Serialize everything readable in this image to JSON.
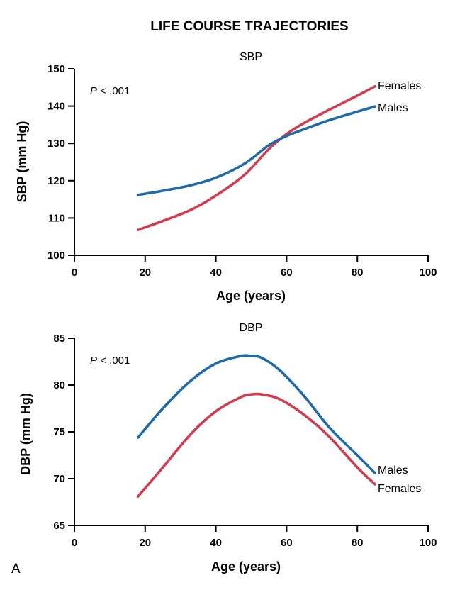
{
  "figure": {
    "title": "LIFE COURSE TRAJECTORIES",
    "panel_label": "A"
  },
  "chart_data": [
    {
      "type": "line",
      "title": "SBP",
      "xlabel": "Age (years)",
      "ylabel": "SBP (mm Hg)",
      "annotation_prefix": "P",
      "annotation_value": " < .001",
      "xlim": [
        0,
        100
      ],
      "ylim": [
        100,
        150
      ],
      "xticks": [
        0,
        20,
        40,
        60,
        80,
        100
      ],
      "yticks": [
        100,
        110,
        120,
        130,
        140,
        150
      ],
      "series": [
        {
          "name": "Females",
          "color": "#d23c4f",
          "x": [
            18,
            25,
            33,
            40,
            48,
            55,
            60,
            65,
            72,
            80,
            85
          ],
          "y": [
            106.8,
            109.2,
            112.2,
            116,
            121.5,
            128.5,
            132.5,
            135.5,
            139,
            142.8,
            145.3
          ]
        },
        {
          "name": "Males",
          "color": "#1f6aa8",
          "x": [
            18,
            25,
            33,
            40,
            48,
            55,
            60,
            65,
            72,
            80,
            85
          ],
          "y": [
            116.2,
            117.3,
            118.8,
            120.8,
            124.5,
            129.5,
            132,
            133.8,
            136.2,
            138.5,
            139.9
          ]
        }
      ]
    },
    {
      "type": "line",
      "title": "DBP",
      "xlabel": "Age (years)",
      "ylabel": "DBP (mm Hg)",
      "annotation_prefix": "P",
      "annotation_value": " < .001",
      "xlim": [
        0,
        100
      ],
      "ylim": [
        65,
        85
      ],
      "xticks": [
        0,
        20,
        40,
        60,
        80,
        100
      ],
      "yticks": [
        65,
        70,
        75,
        80,
        85
      ],
      "series": [
        {
          "name": "Males",
          "color": "#1f6aa8",
          "x": [
            18,
            25,
            33,
            40,
            47,
            50,
            53,
            58,
            65,
            72,
            80,
            85
          ],
          "y": [
            74.4,
            77.5,
            80.5,
            82.3,
            83.1,
            83.1,
            82.9,
            81.6,
            78.8,
            75.5,
            72.5,
            70.6
          ]
        },
        {
          "name": "Females",
          "color": "#d23c4f",
          "x": [
            18,
            25,
            33,
            40,
            47,
            50,
            53,
            58,
            65,
            72,
            80,
            85
          ],
          "y": [
            68.1,
            71.2,
            74.8,
            77.2,
            78.7,
            79,
            79,
            78.5,
            76.8,
            74.5,
            71.2,
            69.4
          ]
        }
      ]
    }
  ]
}
